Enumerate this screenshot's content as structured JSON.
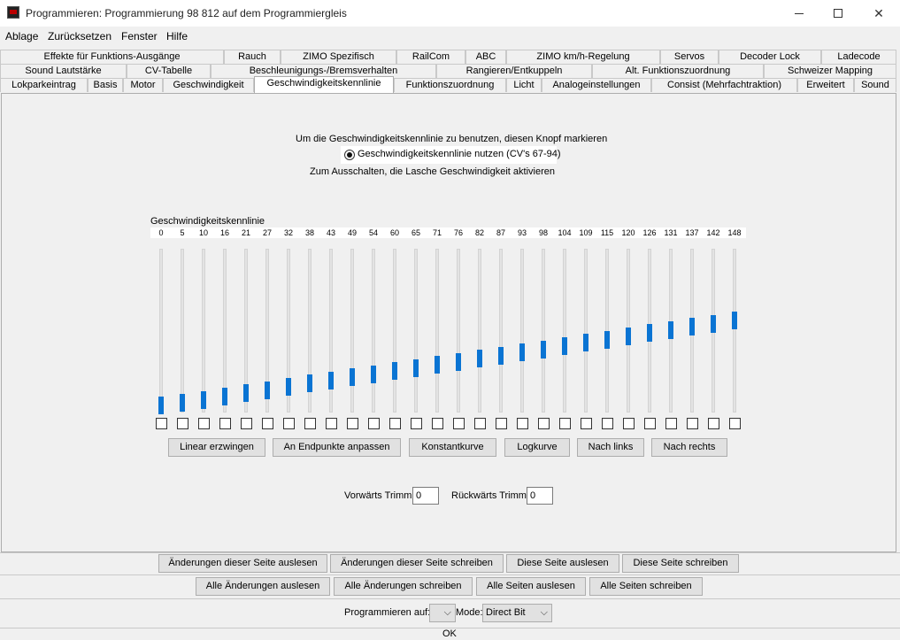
{
  "window": {
    "title": "Programmieren: Programmierung 98 812 auf dem Programmiergleis",
    "minimize_glyph": "—",
    "maximize_glyph": "☐",
    "close_glyph": "✕"
  },
  "menu": {
    "items": [
      "Ablage",
      "Zurücksetzen",
      "Fenster",
      "Hilfe"
    ]
  },
  "tabs": {
    "row1": [
      "Effekte für Funktions-Ausgänge",
      "Rauch",
      "ZIMO Spezifisch",
      "RailCom",
      "ABC",
      "ZIMO km/h-Regelung",
      "Servos",
      "Decoder Lock",
      "Ladecode"
    ],
    "row2": [
      "Sound Lautstärke",
      "CV-Tabelle",
      "Beschleunigungs-/Bremsverhalten",
      "Rangieren/Entkuppeln",
      "Alt. Funktionszuordnung",
      "Schweizer Mapping"
    ],
    "row3": [
      "Lokparkeintrag",
      "Basis",
      "Motor",
      "Geschwindigkeit",
      "Geschwindigkeitskennlinie",
      "Funktionszuordnung",
      "Licht",
      "Analogeinstellungen",
      "Consist (Mehrfachtraktion)",
      "Erweitert",
      "Sound"
    ],
    "active": "Geschwindigkeitskennlinie"
  },
  "speed_table": {
    "instruction": "Um die Geschwindigkeitskennlinie zu benutzen, diesen Knopf markieren",
    "radio_label": "Geschwindigkeitskennlinie nutzen (CV's 67-94)",
    "radio_checked": true,
    "disable_hint": "Zum Ausschalten, die Lasche Geschwindigkeit aktivieren",
    "curve_label": "Geschwindigkeitskennlinie",
    "values": [
      0,
      5,
      10,
      16,
      21,
      27,
      32,
      38,
      43,
      49,
      54,
      60,
      65,
      71,
      76,
      82,
      87,
      93,
      98,
      104,
      109,
      115,
      120,
      126,
      131,
      137,
      142,
      148
    ],
    "max_value": 255,
    "accent_color": "#0a74d3"
  },
  "curve_buttons": [
    "Linear erzwingen",
    "An Endpunkte anpassen",
    "Konstantkurve",
    "Logkurve",
    "Nach links",
    "Nach rechts"
  ],
  "trim": {
    "forward_label": "Vorwärts Trimm",
    "forward_value": "0",
    "reverse_label": "Rückwärts Trimm",
    "reverse_value": "0"
  },
  "page_buttons": [
    "Änderungen dieser Seite auslesen",
    "Änderungen dieser Seite schreiben",
    "Diese Seite auslesen",
    "Diese Seite schreiben"
  ],
  "all_buttons": [
    "Alle Änderungen auslesen",
    "Alle Änderungen schreiben",
    "Alle Seiten auslesen",
    "Alle Seiten schreiben"
  ],
  "program": {
    "label": "Programmieren auf:",
    "target_value": "",
    "mode_label": "Mode:",
    "mode_value": "Direct Bit"
  },
  "ok_label": "OK"
}
